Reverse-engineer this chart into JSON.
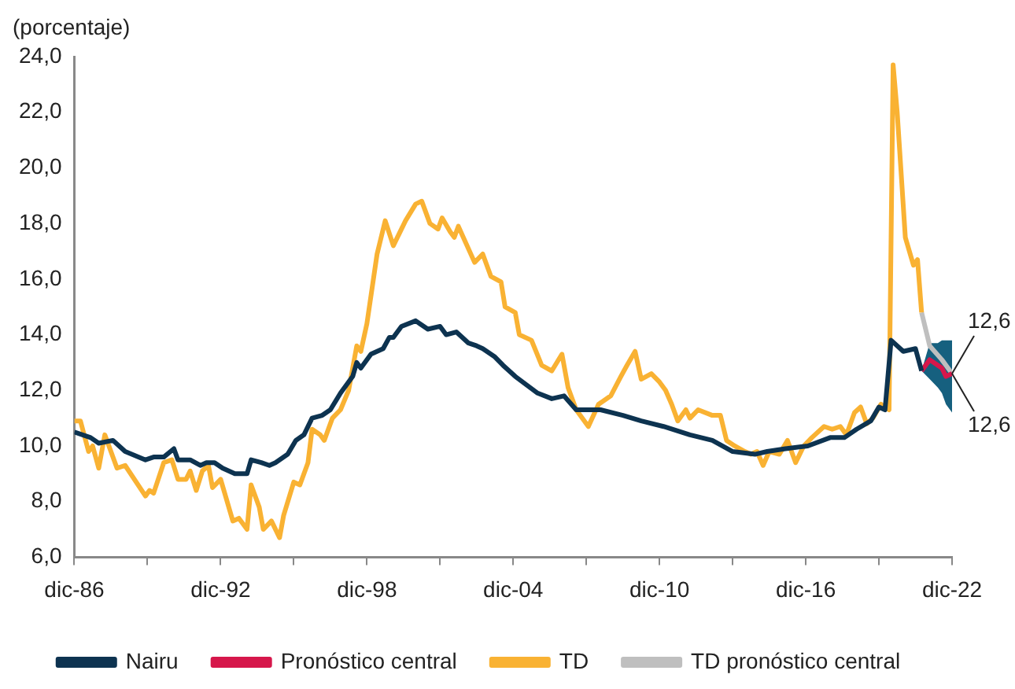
{
  "chart_data": {
    "type": "line",
    "ylabel": "(porcentaje)",
    "xlim": [
      "1986-12",
      "2022-12"
    ],
    "xticks": [
      {
        "value": "1986-12",
        "label": "dic-86"
      },
      {
        "value": "1989-12",
        "label": null
      },
      {
        "value": "1992-12",
        "label": "dic-92"
      },
      {
        "value": "1995-12",
        "label": null
      },
      {
        "value": "1998-12",
        "label": "dic-98"
      },
      {
        "value": "2001-12",
        "label": null
      },
      {
        "value": "2004-12",
        "label": "dic-04"
      },
      {
        "value": "2007-12",
        "label": null
      },
      {
        "value": "2010-12",
        "label": "dic-10"
      },
      {
        "value": "2013-12",
        "label": null
      },
      {
        "value": "2016-12",
        "label": "dic-16"
      },
      {
        "value": "2019-12",
        "label": null
      },
      {
        "value": "2022-12",
        "label": "dic-22"
      }
    ],
    "ylim": [
      6,
      24
    ],
    "yticks": [
      {
        "value": 6,
        "label": "6,0"
      },
      {
        "value": 8,
        "label": "8,0"
      },
      {
        "value": 10,
        "label": "10,0"
      },
      {
        "value": 12,
        "label": "12,0"
      },
      {
        "value": 14,
        "label": "14,0"
      },
      {
        "value": 16,
        "label": "16,0"
      },
      {
        "value": 18,
        "label": "18,0"
      },
      {
        "value": 20,
        "label": "20,0"
      },
      {
        "value": 22,
        "label": "22,0"
      },
      {
        "value": 24,
        "label": "24,0"
      }
    ],
    "grid": false,
    "legend": "bottom",
    "marker": "none",
    "line_style": "solid",
    "series": [
      {
        "name": "Nairu",
        "color": "#0d3350",
        "x": [
          "1986-12",
          "1987-08",
          "1987-12",
          "1988-07",
          "1989-01",
          "1989-11",
          "1990-03",
          "1990-08",
          "1991-01",
          "1991-03",
          "1991-09",
          "1992-02",
          "1992-05",
          "1992-09",
          "1993-01",
          "1993-07",
          "1994-01",
          "1994-03",
          "1994-08",
          "1994-12",
          "1995-03",
          "1995-09",
          "1996-01",
          "1996-05",
          "1996-09",
          "1997-02",
          "1997-06",
          "1997-11",
          "1998-05",
          "1998-07",
          "1998-09",
          "1999-02",
          "1999-08",
          "1999-11",
          "2000-01",
          "2000-05",
          "2000-12",
          "2001-02",
          "2001-06",
          "2001-12",
          "2002-03",
          "2002-08",
          "2003-02",
          "2003-06",
          "2003-09",
          "2004-03",
          "2004-07",
          "2005-01",
          "2005-12",
          "2006-07",
          "2007-01",
          "2007-07",
          "2008-07",
          "2009-06",
          "2010-03",
          "2011-02",
          "2012-03",
          "2013-02",
          "2013-12",
          "2014-11",
          "2015-05",
          "2016-02",
          "2017-01",
          "2017-12",
          "2018-07",
          "2019-01",
          "2019-08",
          "2019-12",
          "2020-03",
          "2020-06",
          "2020-12",
          "2021-06",
          "2021-09"
        ],
        "values": [
          10.5,
          10.3,
          10.1,
          10.2,
          9.8,
          9.5,
          9.6,
          9.6,
          9.9,
          9.5,
          9.5,
          9.3,
          9.4,
          9.4,
          9.2,
          9.0,
          9.0,
          9.5,
          9.4,
          9.3,
          9.4,
          9.7,
          10.2,
          10.4,
          11.0,
          11.1,
          11.3,
          11.9,
          12.5,
          13.0,
          12.8,
          13.3,
          13.5,
          13.9,
          13.9,
          14.3,
          14.5,
          14.4,
          14.2,
          14.3,
          14.0,
          14.1,
          13.7,
          13.6,
          13.5,
          13.2,
          12.9,
          12.5,
          11.9,
          11.7,
          11.8,
          11.3,
          11.3,
          11.1,
          10.9,
          10.7,
          10.4,
          10.2,
          9.8,
          9.7,
          9.8,
          9.9,
          10.0,
          10.3,
          10.3,
          10.6,
          10.9,
          11.4,
          11.3,
          13.8,
          13.4,
          13.5,
          12.7
        ]
      },
      {
        "name": "Pronóstico central",
        "color": "#d6174b",
        "x": [
          "2021-09",
          "2022-01",
          "2022-05",
          "2022-07",
          "2022-09",
          "2022-12"
        ],
        "values": [
          12.7,
          13.1,
          12.9,
          12.8,
          12.5,
          12.6
        ],
        "lower": [
          12.7,
          12.4,
          12.1,
          11.9,
          11.5,
          11.2
        ],
        "upper": [
          12.7,
          13.7,
          13.7,
          13.8,
          13.8,
          13.8
        ]
      },
      {
        "name": "TD",
        "color": "#f9b233",
        "x": [
          "1986-12",
          "1987-03",
          "1987-07",
          "1987-09",
          "1987-12",
          "1988-03",
          "1988-09",
          "1989-01",
          "1989-11",
          "1990-01",
          "1990-03",
          "1990-08",
          "1990-12",
          "1991-03",
          "1991-07",
          "1991-09",
          "1991-12",
          "1992-03",
          "1992-06",
          "1992-08",
          "1992-12",
          "1993-06",
          "1993-09",
          "1994-01",
          "1994-03",
          "1994-07",
          "1994-09",
          "1995-01",
          "1995-05",
          "1995-07",
          "1995-12",
          "1996-03",
          "1996-07",
          "1996-09",
          "1997-01",
          "1997-03",
          "1997-07",
          "1997-11",
          "1998-03",
          "1998-07",
          "1998-09",
          "1998-12",
          "1999-05",
          "1999-09",
          "2000-01",
          "2000-07",
          "2000-12",
          "2001-03",
          "2001-07",
          "2001-11",
          "2002-01",
          "2002-05",
          "2002-07",
          "2002-09",
          "2003-05",
          "2003-09",
          "2004-01",
          "2004-06",
          "2004-08",
          "2005-01",
          "2005-03",
          "2005-09",
          "2006-02",
          "2006-07",
          "2006-12",
          "2007-03",
          "2007-07",
          "2008-01",
          "2008-06",
          "2008-12",
          "2009-05",
          "2009-08",
          "2009-12",
          "2010-03",
          "2010-08",
          "2010-12",
          "2011-03",
          "2011-06",
          "2011-09",
          "2012-01",
          "2012-03",
          "2012-07",
          "2013-02",
          "2013-06",
          "2013-09",
          "2014-01",
          "2014-06",
          "2014-09",
          "2014-12",
          "2015-03",
          "2015-06",
          "2015-11",
          "2016-03",
          "2016-07",
          "2016-11",
          "2017-03",
          "2017-09",
          "2018-01",
          "2018-05",
          "2018-08",
          "2018-12",
          "2019-03",
          "2019-06",
          "2019-09",
          "2020-01",
          "2020-05",
          "2020-07",
          "2020-09",
          "2021-01",
          "2021-05",
          "2021-07",
          "2021-09"
        ],
        "values": [
          10.9,
          10.9,
          9.8,
          10.0,
          9.2,
          10.4,
          9.2,
          9.3,
          8.2,
          8.4,
          8.3,
          9.4,
          9.5,
          8.8,
          8.8,
          9.1,
          8.4,
          9.1,
          9.3,
          8.5,
          8.8,
          7.3,
          7.4,
          7.0,
          8.6,
          7.8,
          7.0,
          7.3,
          6.7,
          7.5,
          8.7,
          8.6,
          9.4,
          10.6,
          10.4,
          10.2,
          11.0,
          11.3,
          12.0,
          13.6,
          13.4,
          14.4,
          16.9,
          18.1,
          17.2,
          18.1,
          18.7,
          18.8,
          18.0,
          17.8,
          18.2,
          17.7,
          17.5,
          17.9,
          16.6,
          16.9,
          16.1,
          15.9,
          15.0,
          14.8,
          14.0,
          13.8,
          12.9,
          12.7,
          13.3,
          12.1,
          11.3,
          10.7,
          11.5,
          11.8,
          12.5,
          12.9,
          13.4,
          12.4,
          12.6,
          12.3,
          12.0,
          11.5,
          10.9,
          11.3,
          11.0,
          11.3,
          11.1,
          11.1,
          10.2,
          10.0,
          9.8,
          9.7,
          9.8,
          9.3,
          9.8,
          9.7,
          10.2,
          9.4,
          10.0,
          10.3,
          10.7,
          10.6,
          10.7,
          10.4,
          11.2,
          11.4,
          10.8,
          11.0,
          11.5,
          11.3,
          23.7,
          22.0,
          17.5,
          16.5,
          16.7,
          14.8
        ]
      },
      {
        "name": "TD pronóstico central",
        "color": "#bfbfbf",
        "x": [
          "2021-09",
          "2022-01",
          "2022-07",
          "2022-12"
        ],
        "values": [
          14.8,
          13.6,
          13.1,
          12.6
        ]
      }
    ],
    "annotations": [
      {
        "text": "12,6",
        "x": "2022-12",
        "y": 12.6
      },
      {
        "text": "12,6",
        "x": "2022-12",
        "y": 12.6
      }
    ]
  }
}
